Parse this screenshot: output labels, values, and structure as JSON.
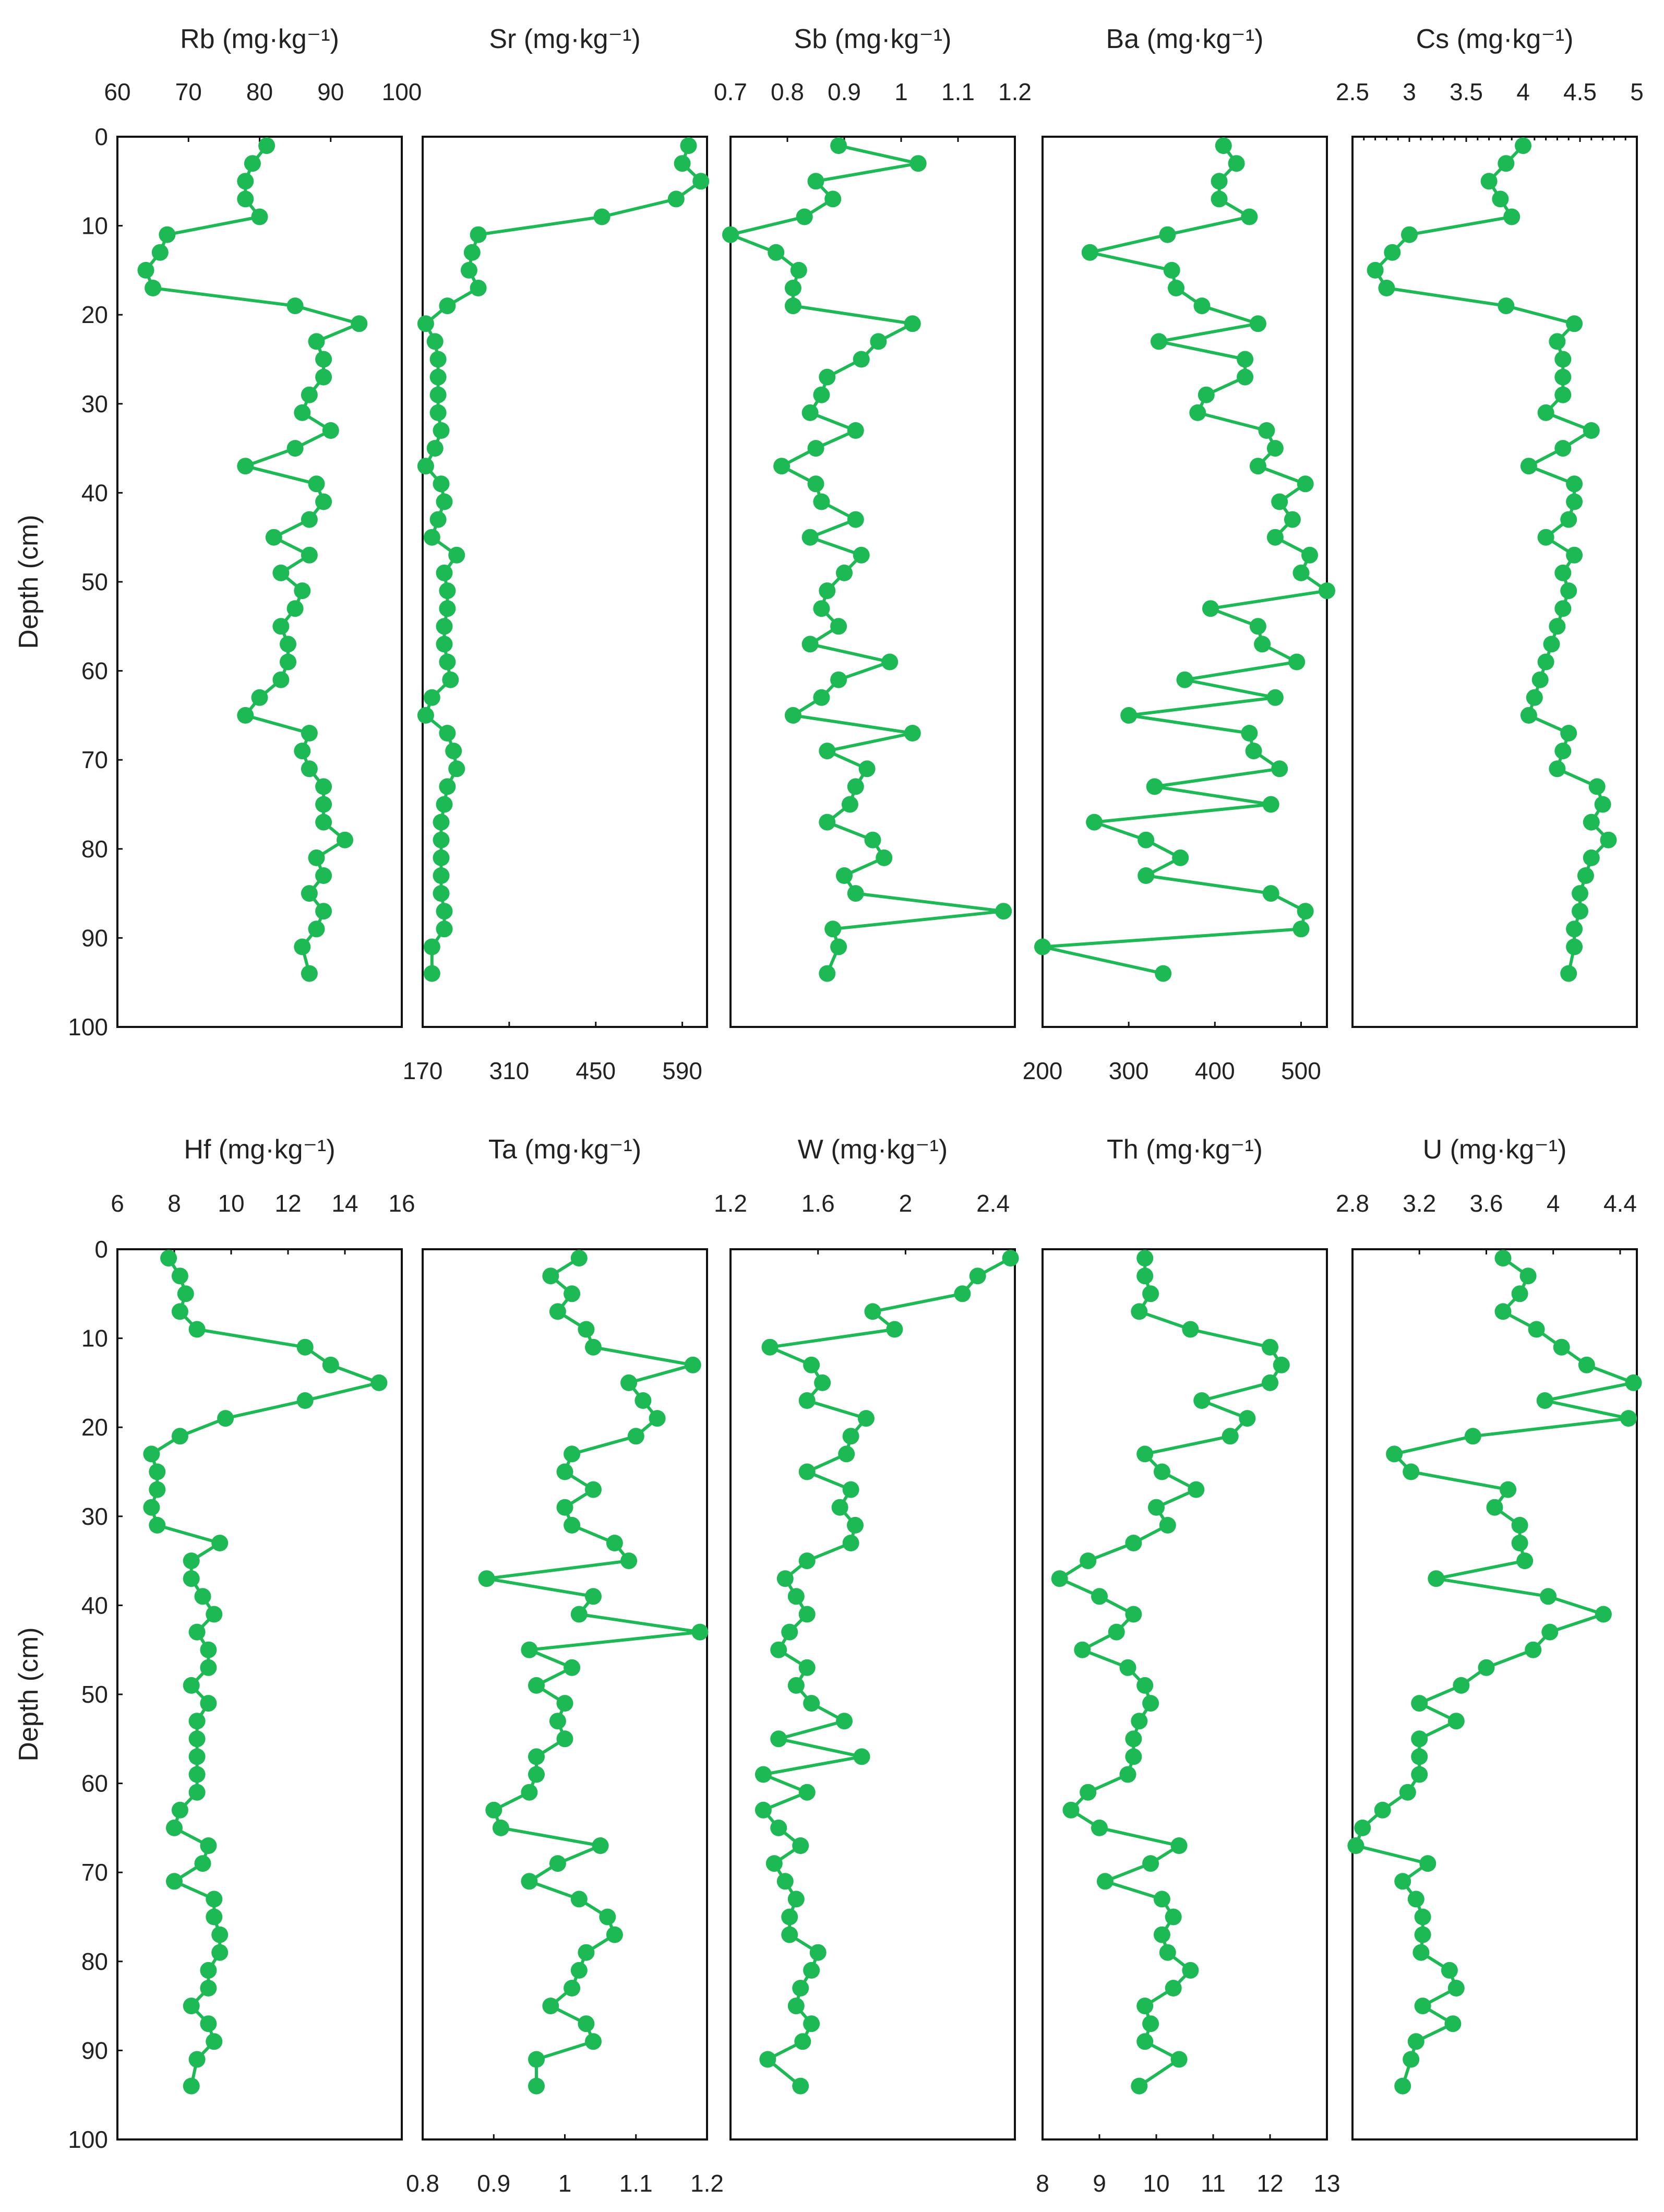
{
  "colors": {
    "series": "#1db954",
    "axis": "#111111",
    "text": "#222222"
  },
  "chart_data": [
    {
      "name": "Rb",
      "type": "line",
      "title": "Rb (mg·kg⁻¹)",
      "ylabel": "Depth (cm)",
      "xlim": [
        60,
        100
      ],
      "x_ticks": [
        60,
        70,
        80,
        90,
        100
      ],
      "x_tick_labels": [
        "60",
        "70",
        "80",
        "90",
        "100"
      ],
      "x_axis_position": "top",
      "ylim": [
        100,
        0
      ],
      "y_ticks": [
        0,
        10,
        20,
        30,
        40,
        50,
        60,
        70,
        80,
        90,
        100
      ],
      "y_tick_labels": [
        "0",
        "10",
        "20",
        "30",
        "40",
        "50",
        "60",
        "70",
        "80",
        "90",
        "100"
      ],
      "depth": [
        1,
        3,
        5,
        7,
        9,
        11,
        13,
        15,
        17,
        19,
        21,
        23,
        25,
        27,
        29,
        31,
        33,
        35,
        37,
        39,
        41,
        43,
        45,
        47,
        49,
        51,
        53,
        55,
        57,
        59,
        61,
        63,
        65,
        67,
        69,
        71,
        73,
        75,
        77,
        79,
        81,
        83,
        85,
        87,
        89,
        91,
        94
      ],
      "values": [
        81,
        79,
        78,
        78,
        80,
        67,
        66,
        64,
        65,
        85,
        94,
        88,
        89,
        89,
        87,
        86,
        90,
        85,
        78,
        88,
        89,
        87,
        82,
        87,
        83,
        86,
        85,
        83,
        84,
        84,
        83,
        80,
        78,
        87,
        86,
        87,
        89,
        89,
        89,
        92,
        88,
        89,
        87,
        89,
        88,
        86,
        87
      ]
    },
    {
      "name": "Sr",
      "type": "line",
      "title": "Sr (mg·kg⁻¹)",
      "xlim": [
        170,
        630
      ],
      "x_ticks": [
        170,
        310,
        450,
        590
      ],
      "x_tick_labels": [
        "170",
        "310",
        "450",
        "590"
      ],
      "x_axis_position": "bottom",
      "ylim": [
        100,
        0
      ],
      "depth": [
        1,
        3,
        5,
        7,
        9,
        11,
        13,
        15,
        17,
        19,
        21,
        23,
        25,
        27,
        29,
        31,
        33,
        35,
        37,
        39,
        41,
        43,
        45,
        47,
        49,
        51,
        53,
        55,
        57,
        59,
        61,
        63,
        65,
        67,
        69,
        71,
        73,
        75,
        77,
        79,
        81,
        83,
        85,
        87,
        89,
        91,
        94
      ],
      "values": [
        600,
        590,
        620,
        580,
        460,
        260,
        250,
        245,
        260,
        210,
        175,
        190,
        195,
        195,
        195,
        195,
        200,
        190,
        175,
        200,
        205,
        195,
        185,
        225,
        205,
        210,
        210,
        205,
        205,
        210,
        215,
        185,
        175,
        210,
        220,
        225,
        210,
        205,
        200,
        200,
        200,
        200,
        200,
        205,
        205,
        185,
        185
      ]
    },
    {
      "name": "Sb",
      "type": "line",
      "title": "Sb (mg·kg⁻¹)",
      "xlim": [
        0.7,
        1.2
      ],
      "x_ticks": [
        0.7,
        0.8,
        0.9,
        1,
        1.1,
        1.2
      ],
      "x_tick_labels": [
        "0.7",
        "0.8",
        "0.9",
        "1",
        "1.1",
        "1.2"
      ],
      "x_axis_position": "top",
      "ylim": [
        100,
        0
      ],
      "depth": [
        1,
        3,
        5,
        7,
        9,
        11,
        13,
        15,
        17,
        19,
        21,
        23,
        25,
        27,
        29,
        31,
        33,
        35,
        37,
        39,
        41,
        43,
        45,
        47,
        49,
        51,
        53,
        55,
        57,
        59,
        61,
        63,
        65,
        67,
        69,
        71,
        73,
        75,
        77,
        79,
        81,
        83,
        85,
        87,
        89,
        91,
        94
      ],
      "values": [
        0.89,
        1.03,
        0.85,
        0.88,
        0.83,
        0.7,
        0.78,
        0.82,
        0.81,
        0.81,
        1.02,
        0.96,
        0.93,
        0.87,
        0.86,
        0.84,
        0.92,
        0.85,
        0.79,
        0.85,
        0.86,
        0.92,
        0.84,
        0.93,
        0.9,
        0.87,
        0.86,
        0.89,
        0.84,
        0.98,
        0.89,
        0.86,
        0.81,
        1.02,
        0.87,
        0.94,
        0.92,
        0.91,
        0.87,
        0.95,
        0.97,
        0.9,
        0.92,
        1.18,
        0.88,
        0.89,
        0.87
      ]
    },
    {
      "name": "Ba",
      "type": "line",
      "title": "Ba (mg·kg⁻¹)",
      "xlim": [
        200,
        530
      ],
      "x_ticks": [
        200,
        300,
        400,
        500
      ],
      "x_tick_labels": [
        "200",
        "300",
        "400",
        "500"
      ],
      "x_axis_position": "bottom",
      "ylim": [
        100,
        0
      ],
      "depth": [
        1,
        3,
        5,
        7,
        9,
        11,
        13,
        15,
        17,
        19,
        21,
        23,
        25,
        27,
        29,
        31,
        33,
        35,
        37,
        39,
        41,
        43,
        45,
        47,
        49,
        51,
        53,
        55,
        57,
        59,
        61,
        63,
        65,
        67,
        69,
        71,
        73,
        75,
        77,
        79,
        81,
        83,
        85,
        87,
        89,
        91,
        94
      ],
      "values": [
        410,
        425,
        405,
        405,
        440,
        345,
        255,
        350,
        355,
        385,
        450,
        335,
        435,
        435,
        390,
        380,
        460,
        470,
        450,
        505,
        475,
        490,
        470,
        510,
        500,
        530,
        395,
        450,
        455,
        495,
        365,
        470,
        300,
        440,
        445,
        475,
        330,
        465,
        260,
        320,
        360,
        320,
        465,
        505,
        500,
        200,
        340
      ]
    },
    {
      "name": "Cs",
      "type": "line",
      "title": "Cs (mg·kg⁻¹)",
      "xlim": [
        2.5,
        5
      ],
      "x_ticks": [
        2.5,
        3,
        3.5,
        4,
        4.5,
        5
      ],
      "x_tick_labels": [
        "2.5",
        "3",
        "3.5",
        "4",
        "4.5",
        "5"
      ],
      "x_axis_position": "top",
      "ylim": [
        100,
        0
      ],
      "depth": [
        1,
        3,
        5,
        7,
        9,
        11,
        13,
        15,
        17,
        19,
        21,
        23,
        25,
        27,
        29,
        31,
        33,
        35,
        37,
        39,
        41,
        43,
        45,
        47,
        49,
        51,
        53,
        55,
        57,
        59,
        61,
        63,
        65,
        67,
        69,
        71,
        73,
        75,
        77,
        79,
        81,
        83,
        85,
        87,
        89,
        91,
        94
      ],
      "values": [
        4.0,
        3.85,
        3.7,
        3.8,
        3.9,
        3.0,
        2.85,
        2.7,
        2.8,
        3.85,
        4.45,
        4.3,
        4.35,
        4.35,
        4.35,
        4.2,
        4.6,
        4.35,
        4.05,
        4.45,
        4.45,
        4.4,
        4.2,
        4.45,
        4.35,
        4.4,
        4.35,
        4.3,
        4.25,
        4.2,
        4.15,
        4.1,
        4.05,
        4.4,
        4.35,
        4.3,
        4.65,
        4.7,
        4.6,
        4.75,
        4.6,
        4.55,
        4.5,
        4.5,
        4.45,
        4.45,
        4.4
      ]
    },
    {
      "name": "Hf",
      "type": "line",
      "title": "Hf (mg·kg⁻¹)",
      "ylabel": "Depth (cm)",
      "xlim": [
        6,
        16
      ],
      "x_ticks": [
        6,
        8,
        10,
        12,
        14,
        16
      ],
      "x_tick_labels": [
        "6",
        "8",
        "10",
        "12",
        "14",
        "16"
      ],
      "x_axis_position": "top",
      "ylim": [
        100,
        0
      ],
      "y_ticks": [
        0,
        10,
        20,
        30,
        40,
        50,
        60,
        70,
        80,
        90,
        100
      ],
      "y_tick_labels": [
        "0",
        "10",
        "20",
        "30",
        "40",
        "50",
        "60",
        "70",
        "80",
        "90",
        "100"
      ],
      "depth": [
        1,
        3,
        5,
        7,
        9,
        11,
        13,
        15,
        17,
        19,
        21,
        23,
        25,
        27,
        29,
        31,
        33,
        35,
        37,
        39,
        41,
        43,
        45,
        47,
        49,
        51,
        53,
        55,
        57,
        59,
        61,
        63,
        65,
        67,
        69,
        71,
        73,
        75,
        77,
        79,
        81,
        83,
        85,
        87,
        89,
        91,
        94
      ],
      "values": [
        7.8,
        8.2,
        8.4,
        8.2,
        8.8,
        12.6,
        13.5,
        15.2,
        12.6,
        9.8,
        8.2,
        7.2,
        7.4,
        7.4,
        7.2,
        7.4,
        9.6,
        8.6,
        8.6,
        9.0,
        9.4,
        8.8,
        9.2,
        9.2,
        8.6,
        9.2,
        8.8,
        8.8,
        8.8,
        8.8,
        8.8,
        8.2,
        8.0,
        9.2,
        9.0,
        8.0,
        9.4,
        9.4,
        9.6,
        9.6,
        9.2,
        9.2,
        8.6,
        9.2,
        9.4,
        8.8,
        8.6
      ]
    },
    {
      "name": "Ta",
      "type": "line",
      "title": "Ta (mg·kg⁻¹)",
      "xlim": [
        0.8,
        1.2
      ],
      "x_ticks": [
        0.8,
        0.9,
        1,
        1.1,
        1.2
      ],
      "x_tick_labels": [
        "0.8",
        "0.9",
        "1",
        "1.1",
        "1.2"
      ],
      "x_axis_position": "bottom",
      "ylim": [
        100,
        0
      ],
      "depth": [
        1,
        3,
        5,
        7,
        9,
        11,
        13,
        15,
        17,
        19,
        21,
        23,
        25,
        27,
        29,
        31,
        33,
        35,
        37,
        39,
        41,
        43,
        45,
        47,
        49,
        51,
        53,
        55,
        57,
        59,
        61,
        63,
        65,
        67,
        69,
        71,
        73,
        75,
        77,
        79,
        81,
        83,
        85,
        87,
        89,
        91,
        94
      ],
      "values": [
        1.02,
        0.98,
        1.01,
        0.99,
        1.03,
        1.04,
        1.18,
        1.09,
        1.11,
        1.13,
        1.1,
        1.01,
        1.0,
        1.04,
        1.0,
        1.01,
        1.07,
        1.09,
        0.89,
        1.04,
        1.02,
        1.19,
        0.95,
        1.01,
        0.96,
        1.0,
        0.99,
        1.0,
        0.96,
        0.96,
        0.95,
        0.9,
        0.91,
        1.05,
        0.99,
        0.95,
        1.02,
        1.06,
        1.07,
        1.03,
        1.02,
        1.01,
        0.98,
        1.03,
        1.04,
        0.96,
        0.96
      ]
    },
    {
      "name": "W",
      "type": "line",
      "title": "W (mg·kg⁻¹)",
      "xlim": [
        1.2,
        2.5
      ],
      "x_ticks": [
        1.2,
        1.6,
        2,
        2.4
      ],
      "x_tick_labels": [
        "1.2",
        "1.6",
        "2",
        "2.4"
      ],
      "x_axis_position": "top",
      "ylim": [
        100,
        0
      ],
      "depth": [
        1,
        3,
        5,
        7,
        9,
        11,
        13,
        15,
        17,
        19,
        21,
        23,
        25,
        27,
        29,
        31,
        33,
        35,
        37,
        39,
        41,
        43,
        45,
        47,
        49,
        51,
        53,
        55,
        57,
        59,
        61,
        63,
        65,
        67,
        69,
        71,
        73,
        75,
        77,
        79,
        81,
        83,
        85,
        87,
        89,
        91,
        94
      ],
      "values": [
        2.48,
        2.33,
        2.26,
        1.85,
        1.95,
        1.38,
        1.57,
        1.62,
        1.55,
        1.82,
        1.75,
        1.73,
        1.55,
        1.75,
        1.7,
        1.77,
        1.75,
        1.55,
        1.45,
        1.5,
        1.55,
        1.47,
        1.42,
        1.55,
        1.5,
        1.57,
        1.72,
        1.42,
        1.8,
        1.35,
        1.55,
        1.35,
        1.42,
        1.52,
        1.4,
        1.45,
        1.5,
        1.47,
        1.47,
        1.6,
        1.57,
        1.52,
        1.5,
        1.57,
        1.53,
        1.37,
        1.52
      ]
    },
    {
      "name": "Th",
      "type": "line",
      "title": "Th (mg·kg⁻¹)",
      "xlim": [
        8,
        13
      ],
      "x_ticks": [
        8,
        9,
        10,
        11,
        12,
        13
      ],
      "x_tick_labels": [
        "8",
        "9",
        "10",
        "11",
        "12",
        "13"
      ],
      "x_axis_position": "bottom",
      "ylim": [
        100,
        0
      ],
      "depth": [
        1,
        3,
        5,
        7,
        9,
        11,
        13,
        15,
        17,
        19,
        21,
        23,
        25,
        27,
        29,
        31,
        33,
        35,
        37,
        39,
        41,
        43,
        45,
        47,
        49,
        51,
        53,
        55,
        57,
        59,
        61,
        63,
        65,
        67,
        69,
        71,
        73,
        75,
        77,
        79,
        81,
        83,
        85,
        87,
        89,
        91,
        94
      ],
      "values": [
        9.8,
        9.8,
        9.9,
        9.7,
        10.6,
        12.0,
        12.2,
        12.0,
        10.8,
        11.6,
        11.3,
        9.8,
        10.1,
        10.7,
        10.0,
        10.2,
        9.6,
        8.8,
        8.3,
        9.0,
        9.6,
        9.3,
        8.7,
        9.5,
        9.8,
        9.9,
        9.7,
        9.6,
        9.6,
        9.5,
        8.8,
        8.5,
        9.0,
        10.4,
        9.9,
        9.1,
        10.1,
        10.3,
        10.1,
        10.2,
        10.6,
        10.3,
        9.8,
        9.9,
        9.8,
        10.4,
        9.7
      ]
    },
    {
      "name": "U",
      "type": "line",
      "title": "U (mg·kg⁻¹)",
      "xlim": [
        2.8,
        4.5
      ],
      "x_ticks": [
        2.8,
        3.2,
        3.6,
        4,
        4.4
      ],
      "x_tick_labels": [
        "2.8",
        "3.2",
        "3.6",
        "4",
        "4.4"
      ],
      "x_axis_position": "top",
      "ylim": [
        100,
        0
      ],
      "depth": [
        1,
        3,
        5,
        7,
        9,
        11,
        13,
        15,
        17,
        19,
        21,
        23,
        25,
        27,
        29,
        31,
        33,
        35,
        37,
        39,
        41,
        43,
        45,
        47,
        49,
        51,
        53,
        55,
        57,
        59,
        61,
        63,
        65,
        67,
        69,
        71,
        73,
        75,
        77,
        79,
        81,
        83,
        85,
        87,
        89,
        91,
        94
      ],
      "values": [
        3.7,
        3.85,
        3.8,
        3.7,
        3.9,
        4.05,
        4.2,
        4.48,
        3.95,
        4.45,
        3.52,
        3.05,
        3.15,
        3.73,
        3.65,
        3.8,
        3.8,
        3.83,
        3.3,
        3.97,
        4.3,
        3.98,
        3.88,
        3.6,
        3.45,
        3.2,
        3.42,
        3.2,
        3.2,
        3.2,
        3.13,
        2.98,
        2.86,
        2.82,
        3.25,
        3.1,
        3.18,
        3.22,
        3.22,
        3.21,
        3.38,
        3.42,
        3.22,
        3.4,
        3.18,
        3.15,
        3.1
      ]
    }
  ]
}
